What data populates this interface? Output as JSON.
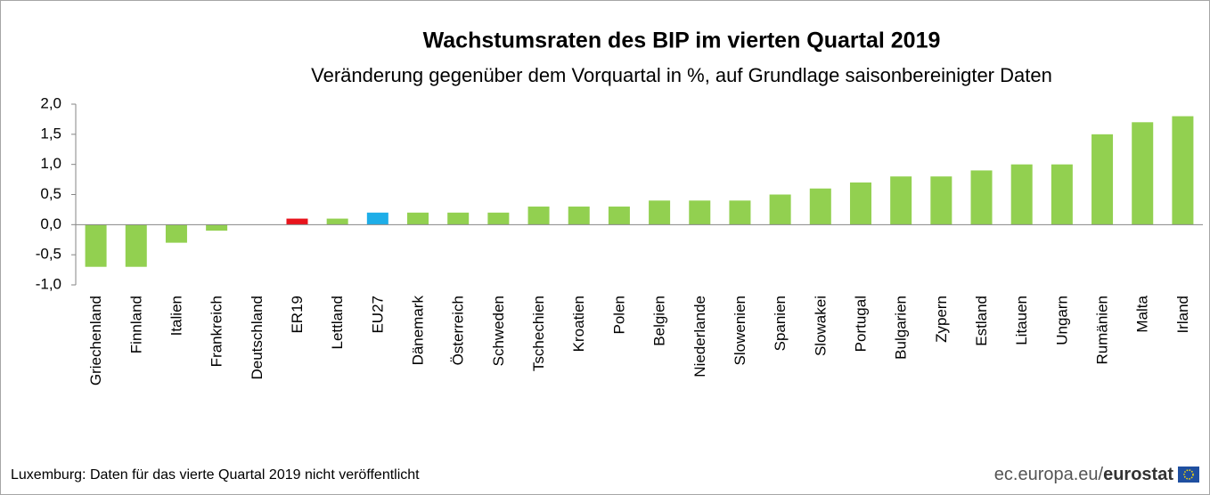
{
  "chart_data": {
    "type": "bar",
    "title": "Wachstumsraten des BIP im vierten Quartal 2019",
    "subtitle": "Veränderung gegenüber dem Vorquartal in %, auf Grundlage saisonbereinigter Daten",
    "categories": [
      "Griechenland",
      "Finnland",
      "Italien",
      "Frankreich",
      "Deutschland",
      "ER19",
      "Lettland",
      "EU27",
      "Dänemark",
      "Österreich",
      "Schweden",
      "Tschechien",
      "Kroatien",
      "Polen",
      "Belgien",
      "Niederlande",
      "Slowenien",
      "Spanien",
      "Slowakei",
      "Portugal",
      "Bulgarien",
      "Zypern",
      "Estland",
      "Litauen",
      "Ungarn",
      "Rumänien",
      "Malta",
      "Irland"
    ],
    "values": [
      -0.7,
      -0.7,
      -0.3,
      -0.1,
      0.0,
      0.1,
      0.1,
      0.2,
      0.2,
      0.2,
      0.2,
      0.3,
      0.3,
      0.3,
      0.4,
      0.4,
      0.4,
      0.5,
      0.6,
      0.7,
      0.8,
      0.8,
      0.9,
      1.0,
      1.0,
      1.5,
      1.7,
      1.8
    ],
    "colors": [
      "#92d050",
      "#92d050",
      "#92d050",
      "#92d050",
      "#92d050",
      "#e8141c",
      "#92d050",
      "#1eaee8",
      "#92d050",
      "#92d050",
      "#92d050",
      "#92d050",
      "#92d050",
      "#92d050",
      "#92d050",
      "#92d050",
      "#92d050",
      "#92d050",
      "#92d050",
      "#92d050",
      "#92d050",
      "#92d050",
      "#92d050",
      "#92d050",
      "#92d050",
      "#92d050",
      "#92d050",
      "#92d050"
    ],
    "ylim": [
      -1.0,
      2.0
    ],
    "yticks": [
      {
        "value": -1.0,
        "label": "-1,0"
      },
      {
        "value": -0.5,
        "label": "-0,5"
      },
      {
        "value": 0.0,
        "label": "0,0"
      },
      {
        "value": 0.5,
        "label": "0,5"
      },
      {
        "value": 1.0,
        "label": "1,0"
      },
      {
        "value": 1.5,
        "label": "1,5"
      },
      {
        "value": 2.0,
        "label": "2,0"
      }
    ],
    "grid": false,
    "footnote": "Luxemburg: Daten für das vierte Quartal 2019 nicht veröffentlicht",
    "source": "ec.europa.eu/",
    "source_brand": "eurostat"
  }
}
